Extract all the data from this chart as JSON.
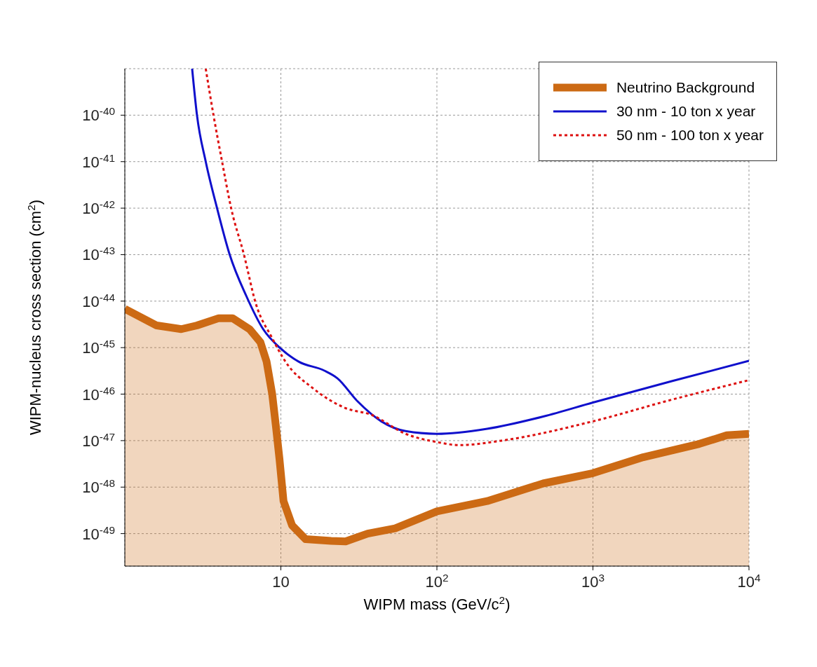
{
  "chart_data": {
    "type": "line",
    "xlabel": "WIPM mass (GeV/c$^{2}$)",
    "ylabel": "WIPM-nucleus cross section (cm$^{2}$)",
    "log": "xy",
    "grid": true,
    "legend": "top right",
    "xlim": [
      1,
      10000
    ],
    "xticks": [
      {
        "value": 10,
        "label": "10"
      },
      {
        "value": 100,
        "label": "10$^{2}$"
      },
      {
        "value": 1000,
        "label": "10$^{3}$"
      },
      {
        "value": 10000,
        "label": "10$^{4}$"
      }
    ],
    "ylim": [
      2e-50,
      1e-39
    ],
    "yticks": [
      {
        "value": 1e-40,
        "label": "10$^{-40}$"
      },
      {
        "value": 1e-41,
        "label": "10$^{-41}$"
      },
      {
        "value": 1e-42,
        "label": "10$^{-42}$"
      },
      {
        "value": 1e-43,
        "label": "10$^{-43}$"
      },
      {
        "value": 1e-44,
        "label": "10$^{-44}$"
      },
      {
        "value": 1e-45,
        "label": "10$^{-45}$"
      },
      {
        "value": 1e-46,
        "label": "10$^{-46}$"
      },
      {
        "value": 1e-47,
        "label": "10$^{-47}$"
      },
      {
        "value": 1e-48,
        "label": "10$^{-48}$"
      },
      {
        "value": 1e-49,
        "label": "10$^{-49}$"
      }
    ],
    "series": [
      {
        "name": "Neutrino Background",
        "type": "area",
        "color": "#cc6a14",
        "line_style": "solid",
        "x": [
          1,
          1.6,
          2.3,
          2.9,
          4,
          4.9,
          6.3,
          7.4,
          8.1,
          8.8,
          9.3,
          9.8,
          10.4,
          11.8,
          14.4,
          21,
          26,
          36,
          54,
          100,
          210,
          480,
          1000,
          2100,
          4800,
          7200,
          10000
        ],
        "values": [
          6.8e-45,
          3e-45,
          2.5e-45,
          3e-45,
          4.3e-45,
          4.3e-45,
          2.5e-45,
          1.3e-45,
          5e-46,
          1e-46,
          2e-47,
          4e-48,
          5e-49,
          1.5e-49,
          7.6e-50,
          7e-50,
          6.8e-50,
          1e-49,
          1.3e-49,
          3e-49,
          5e-49,
          1.2e-48,
          2e-48,
          4.4e-48,
          8.5e-48,
          1.3e-47,
          1.4e-47
        ]
      },
      {
        "name": "30 nm - 10 ton x year",
        "color": "#1010cc",
        "line_style": "solid",
        "x": [
          2.7,
          2.9,
          3.3,
          3.9,
          4.7,
          6,
          7.7,
          10,
          13,
          19,
          23,
          31,
          44,
          63,
          100,
          210,
          480,
          1000,
          3200,
          10000
        ],
        "values": [
          1e-39,
          1e-40,
          1e-41,
          1e-42,
          1e-43,
          1.3e-44,
          2.5e-45,
          9.5e-46,
          5e-46,
          3.2e-46,
          2.2e-46,
          7e-47,
          2.6e-47,
          1.6e-47,
          1.4e-47,
          1.8e-47,
          3.3e-47,
          6.6e-47,
          1.9e-46,
          5.2e-46
        ]
      },
      {
        "name": "50 nm - 100 ton x year",
        "color": "#dd1111",
        "line_style": "dotted",
        "x": [
          3.3,
          3.7,
          4.2,
          4.8,
          5.8,
          6.9,
          8.8,
          10.7,
          16,
          26,
          38,
          63,
          100,
          140,
          260,
          1000,
          3200,
          10000
        ],
        "values": [
          1e-39,
          1e-40,
          1e-41,
          1e-42,
          1e-43,
          9e-45,
          1.6e-45,
          5e-46,
          1.35e-46,
          5e-47,
          3.6e-47,
          1.4e-47,
          9.3e-48,
          8e-48,
          1e-47,
          2.6e-47,
          7.6e-47,
          2e-46
        ]
      }
    ]
  }
}
